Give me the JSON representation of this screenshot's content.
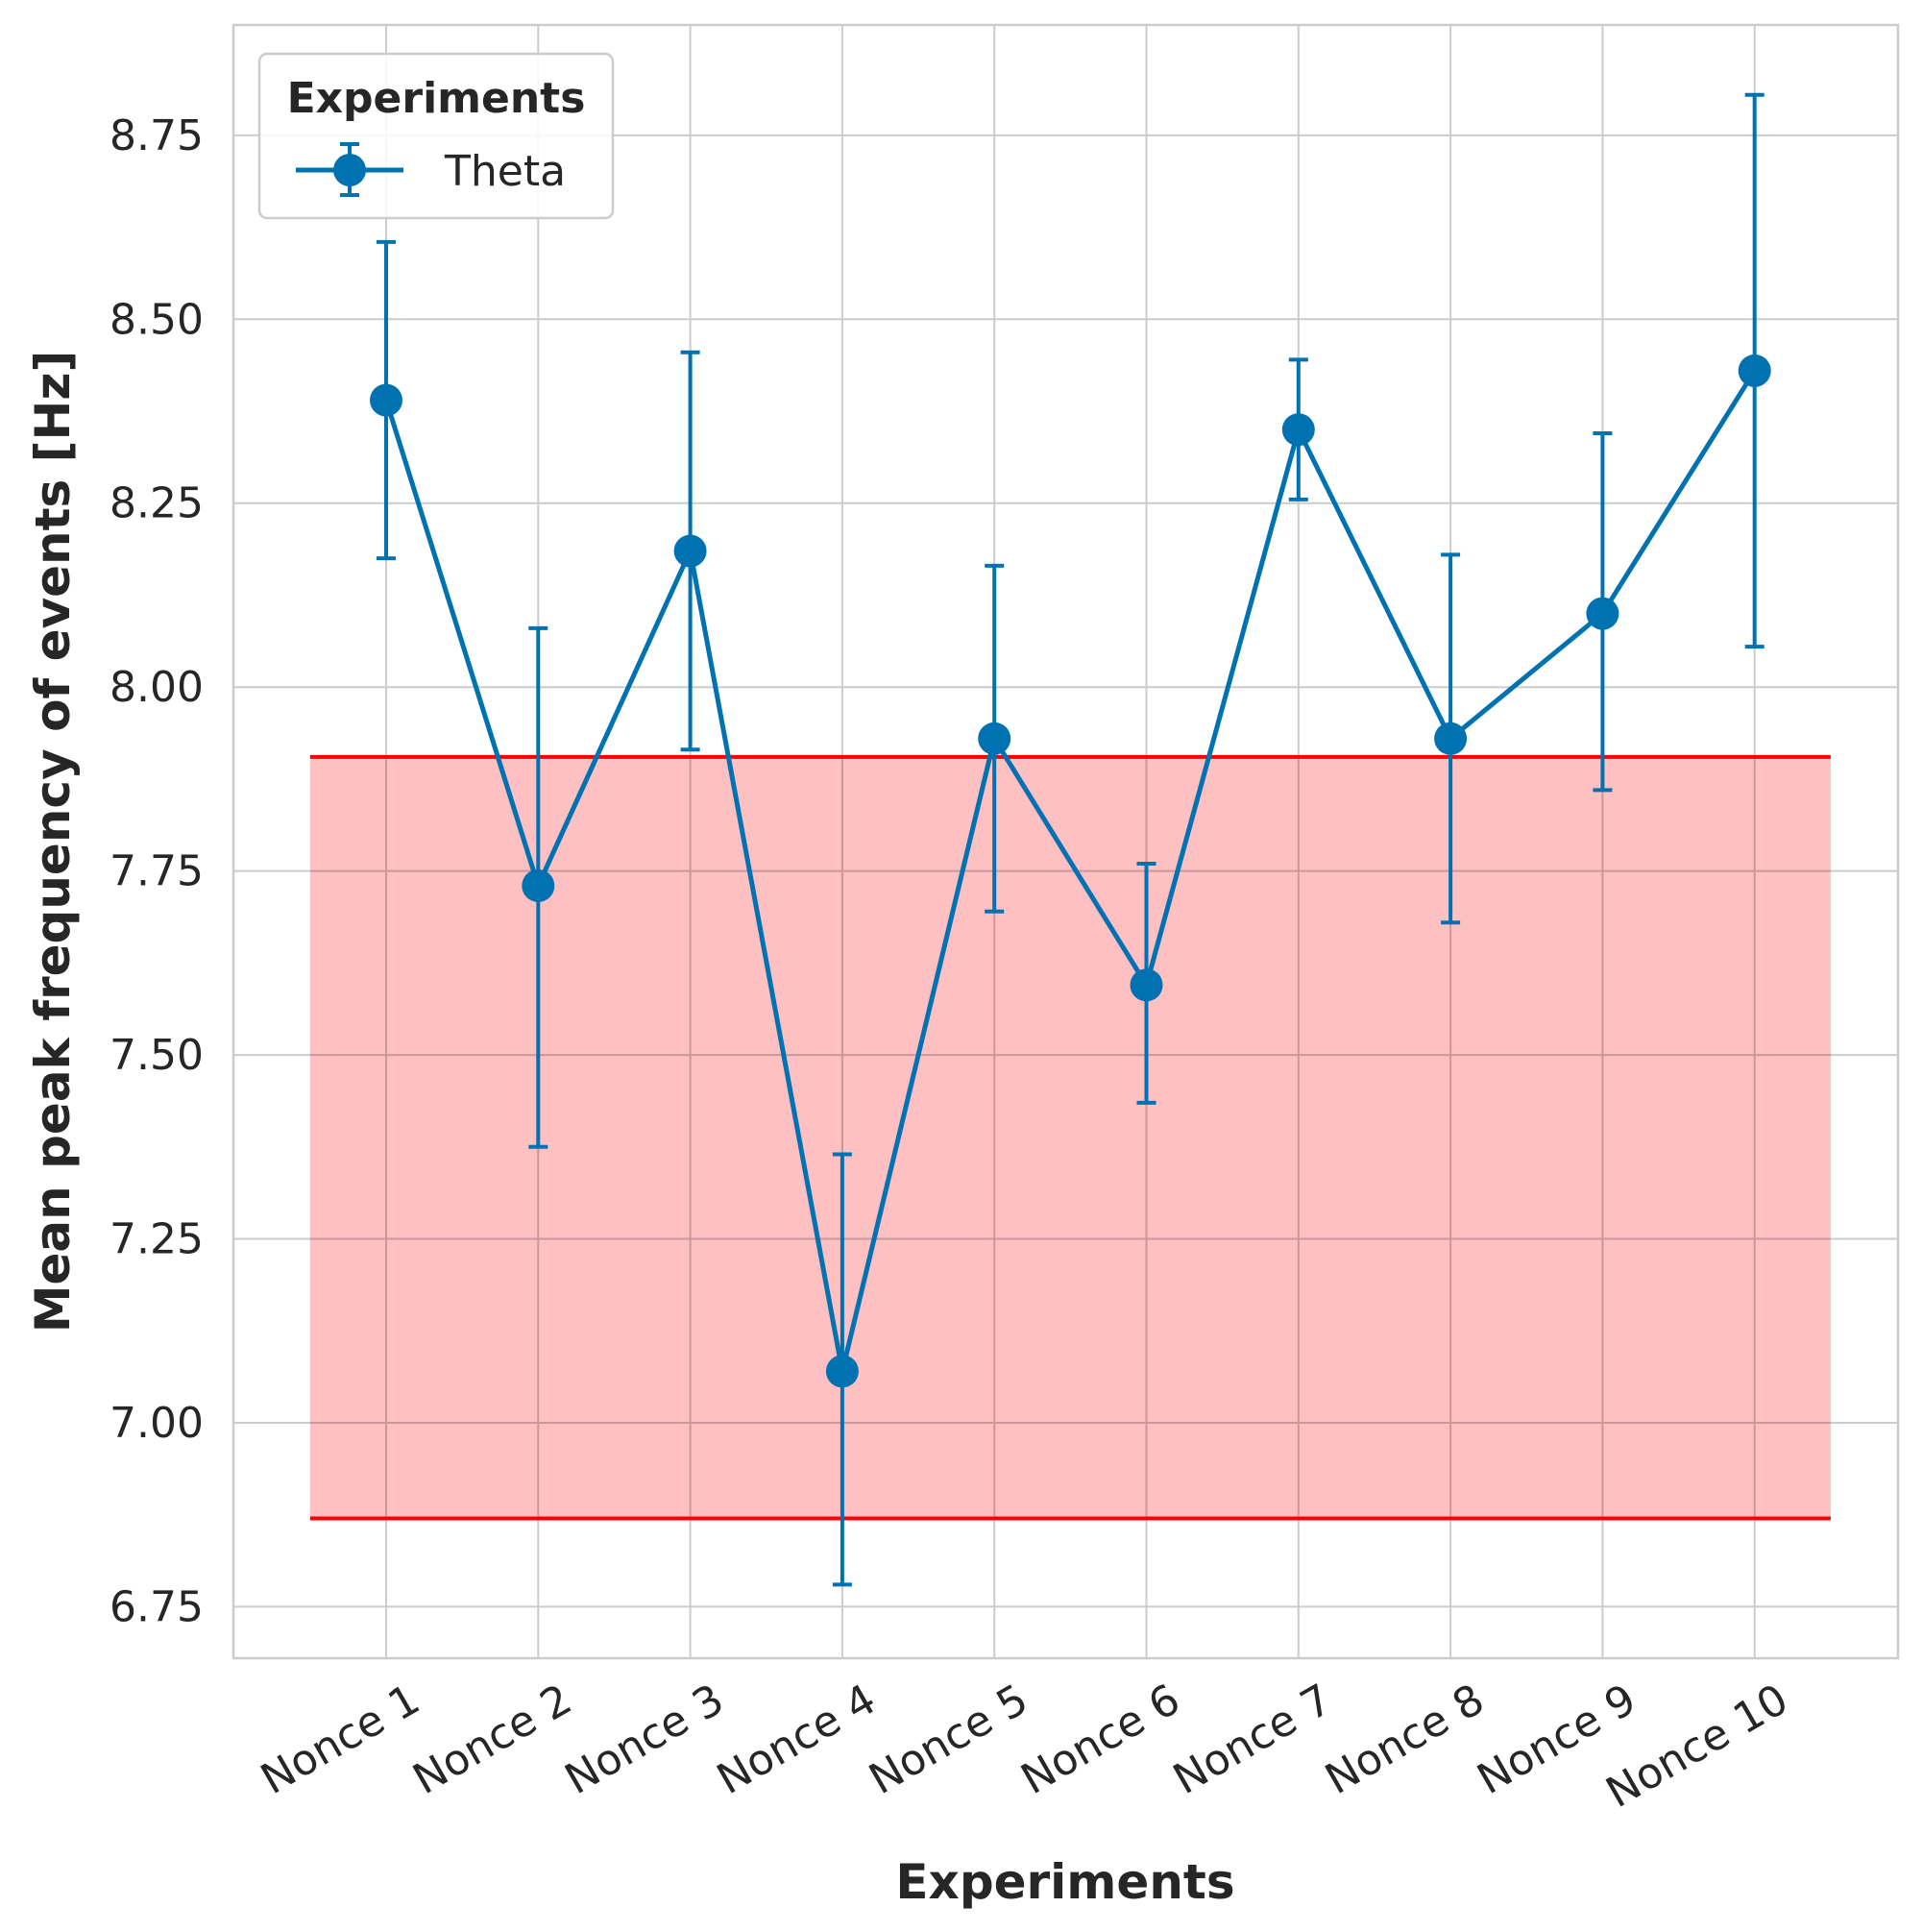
{
  "chart_data": {
    "type": "line",
    "xlabel": "Experiments",
    "ylabel": "Mean peak frequency of events [Hz]",
    "categories": [
      "Nonce 1",
      "Nonce 2",
      "Nonce 3",
      "Nonce 4",
      "Nonce 5",
      "Nonce 6",
      "Nonce 7",
      "Nonce 8",
      "Nonce 9",
      "Nonce 10"
    ],
    "yticks": [
      "6.75",
      "7.00",
      "7.25",
      "7.50",
      "7.75",
      "8.00",
      "8.25",
      "8.50",
      "8.75"
    ],
    "ylim": [
      6.68,
      8.9
    ],
    "grid": true,
    "legend": {
      "title": "Experiments",
      "position": "top-left",
      "entries": [
        "Theta"
      ]
    },
    "series": [
      {
        "name": "Theta",
        "color": "#0072b2",
        "values": [
          8.39,
          7.73,
          8.185,
          7.07,
          7.93,
          7.595,
          8.35,
          7.93,
          8.1,
          8.43
        ],
        "error_low": [
          8.175,
          7.375,
          7.915,
          6.78,
          7.695,
          7.435,
          8.255,
          7.68,
          7.86,
          8.055
        ],
        "error_high": [
          8.605,
          8.08,
          8.455,
          7.365,
          8.165,
          7.76,
          8.445,
          8.18,
          8.345,
          8.805
        ]
      }
    ],
    "band": {
      "color": "#ff0000",
      "fill": "#ffbdbf",
      "y_lower": 6.87,
      "y_upper": 7.905,
      "x_from_category": 0.5,
      "x_to_category": 10.5
    }
  }
}
